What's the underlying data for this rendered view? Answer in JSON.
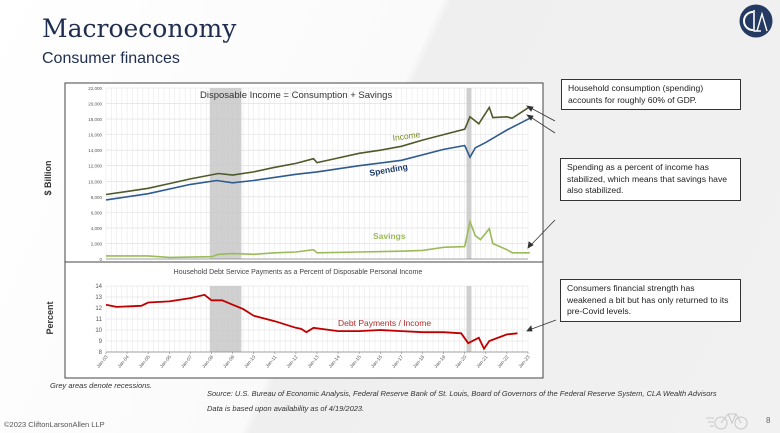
{
  "header": {
    "title": "Macroeconomy",
    "subtitle": "Consumer finances",
    "logo_text": "CLA"
  },
  "callouts": [
    "Household consumption (spending) accounts for roughly 60% of GDP.",
    "Spending as a percent of income has stabilized, which means that savings have also stabilized.",
    "Consumers financial strength has weakened a bit but has only returned to its pre-Covid levels."
  ],
  "footer": {
    "note": "Grey areas denote recessions.",
    "source": "Source: U.S. Bureau of Economic Analysis, Federal Reserve Bank of St. Louis, Board of Governors of the Federal Reserve System, CLA Wealth Advisors",
    "as_of": "Data is based upon availability as of 4/19/2023.",
    "copyright": "©2023 CliftonLarsonAllen LLP",
    "page": "8"
  },
  "chart_data": [
    {
      "type": "line",
      "title": "Disposable Income = Consumption + Savings",
      "ylabel": "$ Billion",
      "ylim": [
        0,
        22000
      ],
      "yticks": [
        "0",
        "2,000",
        "4,000",
        "6,000",
        "8,000",
        "10,000",
        "12,000",
        "14,000",
        "16,000",
        "18,000",
        "20,000",
        "22,000"
      ],
      "grid": true,
      "recessions": [
        [
          "2007-12",
          "2009-06"
        ],
        [
          "2020-02",
          "2020-04"
        ]
      ],
      "series": [
        {
          "name": "Income",
          "color": "#4f5a2a",
          "points": [
            [
              "2003-01",
              8300
            ],
            [
              "2004-01",
              8700
            ],
            [
              "2005-01",
              9100
            ],
            [
              "2006-01",
              9700
            ],
            [
              "2007-01",
              10300
            ],
            [
              "2008-05",
              11000
            ],
            [
              "2009-01",
              10800
            ],
            [
              "2010-01",
              11200
            ],
            [
              "2011-01",
              11800
            ],
            [
              "2012-01",
              12300
            ],
            [
              "2012-11",
              12900
            ],
            [
              "2013-01",
              12400
            ],
            [
              "2014-01",
              13000
            ],
            [
              "2015-01",
              13600
            ],
            [
              "2016-01",
              14000
            ],
            [
              "2017-01",
              14500
            ],
            [
              "2018-01",
              15300
            ],
            [
              "2019-01",
              16000
            ],
            [
              "2020-01",
              16700
            ],
            [
              "2020-04",
              18300
            ],
            [
              "2020-09",
              17400
            ],
            [
              "2021-03",
              19500
            ],
            [
              "2021-05",
              18200
            ],
            [
              "2022-01",
              18300
            ],
            [
              "2022-04",
              18100
            ],
            [
              "2023-02",
              19600
            ]
          ]
        },
        {
          "name": "Spending",
          "color": "#2f5b8f",
          "points": [
            [
              "2003-01",
              7600
            ],
            [
              "2005-01",
              8400
            ],
            [
              "2007-01",
              9600
            ],
            [
              "2008-04",
              10100
            ],
            [
              "2009-01",
              9800
            ],
            [
              "2010-01",
              10100
            ],
            [
              "2012-01",
              10900
            ],
            [
              "2013-01",
              11200
            ],
            [
              "2015-01",
              12000
            ],
            [
              "2017-01",
              12700
            ],
            [
              "2019-01",
              14100
            ],
            [
              "2020-01",
              14600
            ],
            [
              "2020-04",
              13100
            ],
            [
              "2020-07",
              14300
            ],
            [
              "2021-01",
              15000
            ],
            [
              "2021-07",
              15800
            ],
            [
              "2022-01",
              16600
            ],
            [
              "2023-02",
              18100
            ]
          ]
        },
        {
          "name": "Savings",
          "color": "#9bbb59",
          "points": [
            [
              "2003-01",
              400
            ],
            [
              "2005-01",
              400
            ],
            [
              "2006-01",
              200
            ],
            [
              "2008-01",
              300
            ],
            [
              "2008-05",
              600
            ],
            [
              "2009-01",
              700
            ],
            [
              "2010-01",
              600
            ],
            [
              "2011-01",
              800
            ],
            [
              "2012-01",
              900
            ],
            [
              "2012-11",
              1200
            ],
            [
              "2013-01",
              800
            ],
            [
              "2015-01",
              900
            ],
            [
              "2017-01",
              1000
            ],
            [
              "2018-01",
              1100
            ],
            [
              "2019-01",
              1500
            ],
            [
              "2020-01",
              1600
            ],
            [
              "2020-04",
              4800
            ],
            [
              "2020-07",
              3000
            ],
            [
              "2020-10",
              2500
            ],
            [
              "2021-03",
              3900
            ],
            [
              "2021-05",
              2000
            ],
            [
              "2022-01",
              1200
            ],
            [
              "2022-04",
              800
            ],
            [
              "2023-02",
              800
            ]
          ]
        }
      ]
    },
    {
      "type": "line",
      "title": "Household Debt Service Payments as a Percent of Disposable Personal Income",
      "ylabel": "Percent",
      "ylim": [
        8,
        14
      ],
      "yticks": [
        "8",
        "9",
        "10",
        "11",
        "12",
        "13",
        "14"
      ],
      "xticks": [
        "Jan-03",
        "Jan-04",
        "Jan-05",
        "Jan-06",
        "Jan-07",
        "Jan-08",
        "Jan-09",
        "Jan-10",
        "Jan-11",
        "Jan-12",
        "Jan-13",
        "Jan-14",
        "Jan-15",
        "Jan-16",
        "Jan-17",
        "Jan-18",
        "Jan-19",
        "Jan-20",
        "Jan-21",
        "Jan-22",
        "Jan-23"
      ],
      "grid": true,
      "recessions": [
        [
          "2007-12",
          "2009-06"
        ],
        [
          "2020-02",
          "2020-04"
        ]
      ],
      "series": [
        {
          "name": "Debt Payments / Income",
          "color": "#c00000",
          "points": [
            [
              "2003-01",
              12.3
            ],
            [
              "2003-07",
              12.1
            ],
            [
              "2004-09",
              12.2
            ],
            [
              "2005-01",
              12.5
            ],
            [
              "2006-01",
              12.6
            ],
            [
              "2007-01",
              12.9
            ],
            [
              "2007-09",
              13.2
            ],
            [
              "2008-01",
              12.7
            ],
            [
              "2008-07",
              12.7
            ],
            [
              "2009-01",
              12.3
            ],
            [
              "2009-07",
              11.9
            ],
            [
              "2010-01",
              11.3
            ],
            [
              "2011-01",
              10.8
            ],
            [
              "2012-01",
              10.2
            ],
            [
              "2012-04",
              10.1
            ],
            [
              "2012-07",
              9.8
            ],
            [
              "2012-11",
              10.2
            ],
            [
              "2014-01",
              9.9
            ],
            [
              "2015-01",
              9.9
            ],
            [
              "2016-01",
              10.0
            ],
            [
              "2017-01",
              9.9
            ],
            [
              "2018-01",
              9.8
            ],
            [
              "2019-01",
              9.8
            ],
            [
              "2019-11",
              9.7
            ],
            [
              "2020-03",
              8.8
            ],
            [
              "2020-09",
              9.3
            ],
            [
              "2020-12",
              8.3
            ],
            [
              "2021-03",
              9.0
            ],
            [
              "2022-01",
              9.6
            ],
            [
              "2022-07",
              9.7
            ]
          ]
        }
      ]
    }
  ]
}
